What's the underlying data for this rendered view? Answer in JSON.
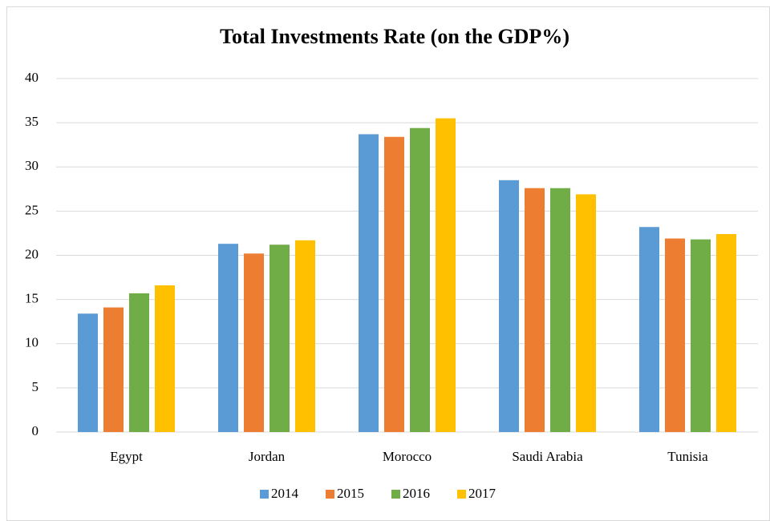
{
  "chart_data": {
    "type": "bar",
    "title": "Total Investments Rate (on the GDP%)",
    "categories": [
      "Egypt",
      "Jordan",
      "Morocco",
      "Saudi Arabia",
      "Tunisia"
    ],
    "series": [
      {
        "name": "2014",
        "color": "#5b9bd5",
        "values": [
          13.4,
          21.3,
          33.7,
          28.5,
          23.2
        ]
      },
      {
        "name": "2015",
        "color": "#ed7d31",
        "values": [
          14.1,
          20.2,
          33.4,
          27.6,
          21.9
        ]
      },
      {
        "name": "2016",
        "color": "#70ad47",
        "values": [
          15.7,
          21.2,
          34.4,
          27.6,
          21.8
        ]
      },
      {
        "name": "2017",
        "color": "#ffc000",
        "values": [
          16.6,
          21.7,
          35.5,
          26.9,
          22.4
        ]
      }
    ],
    "ylim": [
      0,
      40
    ],
    "yticks": [
      0,
      5,
      10,
      15,
      20,
      25,
      30,
      35,
      40
    ],
    "grid": true,
    "legend": "bottom"
  }
}
